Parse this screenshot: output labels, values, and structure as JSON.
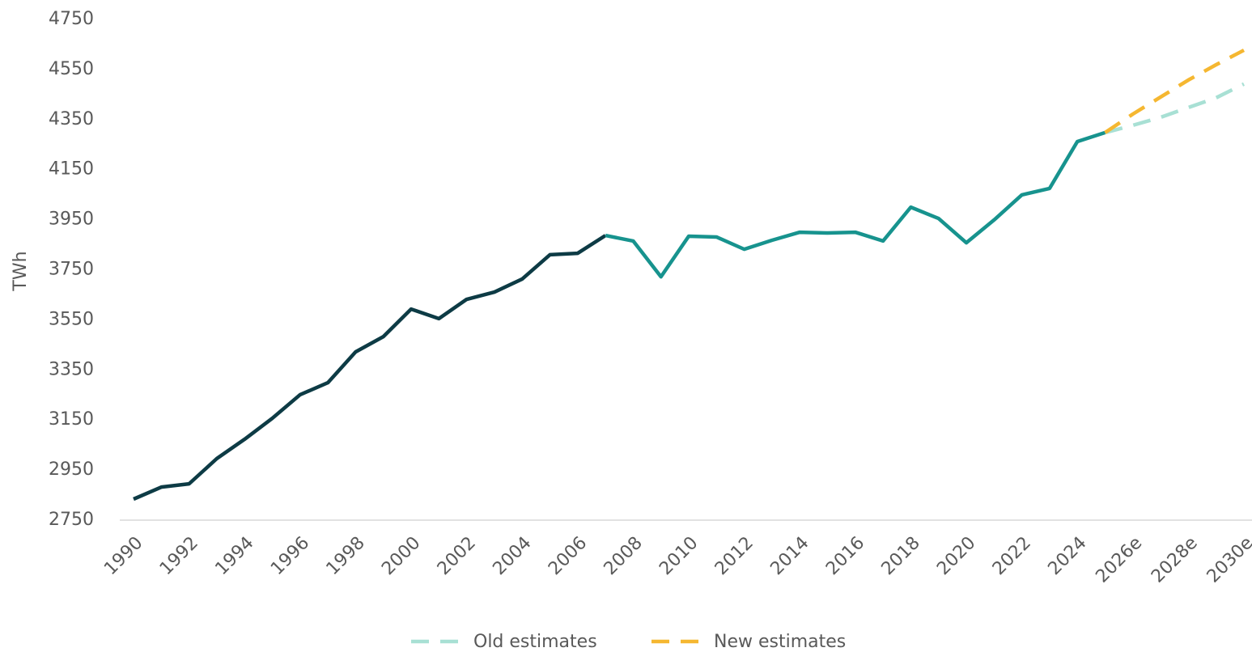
{
  "chart_data": {
    "type": "line",
    "y_label": "TWh",
    "categories": [
      "1990",
      null,
      "1992",
      null,
      "1994",
      null,
      "1996",
      null,
      "1998",
      null,
      "2000",
      null,
      "2002",
      null,
      "2004",
      null,
      "2006",
      null,
      "2008",
      null,
      "2010",
      null,
      "2012",
      null,
      "2014",
      null,
      "2016",
      null,
      "2018",
      null,
      "2020",
      null,
      "2022",
      null,
      "2024",
      null,
      "2026e",
      null,
      "2028e",
      null,
      "2030e"
    ],
    "series": [
      {
        "color": "#0d3b45",
        "line_style": "solid",
        "values": [
          2834,
          2882,
          2895,
          2996,
          3073,
          3157,
          3251,
          3299,
          3422,
          3483,
          3593,
          3555,
          3632,
          3661,
          3713,
          3810,
          3816,
          3887,
          null,
          null,
          null,
          null,
          null,
          null,
          null,
          null,
          null,
          null,
          null,
          null,
          null,
          null,
          null,
          null,
          null,
          null,
          null,
          null,
          null,
          null,
          null
        ]
      },
      {
        "color": "#17938e",
        "line_style": "solid",
        "values": [
          null,
          null,
          null,
          null,
          null,
          null,
          null,
          null,
          null,
          null,
          null,
          null,
          null,
          null,
          null,
          null,
          null,
          3887,
          3865,
          3722,
          3884,
          3881,
          3832,
          3868,
          3900,
          3897,
          3900,
          3865,
          4000,
          3955,
          3858,
          3949,
          4049,
          4075,
          4262,
          4298,
          null,
          null,
          null,
          null,
          null
        ]
      },
      {
        "name": "Old estimates",
        "color": "#a8e0d4",
        "line_style": "dashed",
        "values": [
          null,
          null,
          null,
          null,
          null,
          null,
          null,
          null,
          null,
          null,
          null,
          null,
          null,
          null,
          null,
          null,
          null,
          null,
          null,
          null,
          null,
          null,
          null,
          null,
          null,
          null,
          null,
          null,
          null,
          null,
          null,
          null,
          null,
          null,
          null,
          4298,
          4327,
          4359,
          4398,
          4437,
          4492
        ]
      },
      {
        "name": "New estimates",
        "color": "#f5b731",
        "line_style": "dashed",
        "values": [
          null,
          null,
          null,
          null,
          null,
          null,
          null,
          null,
          null,
          null,
          null,
          null,
          null,
          null,
          null,
          null,
          null,
          null,
          null,
          null,
          null,
          null,
          null,
          null,
          null,
          null,
          null,
          null,
          null,
          null,
          null,
          null,
          null,
          null,
          null,
          4298,
          4372,
          4440,
          4508,
          4569,
          4627
        ]
      }
    ],
    "ylim": [
      2750,
      4750
    ],
    "yticks": [
      2750,
      2950,
      3150,
      3350,
      3550,
      3750,
      3950,
      4150,
      4350,
      4550,
      4750
    ],
    "grid": false,
    "legend": "bottom"
  }
}
